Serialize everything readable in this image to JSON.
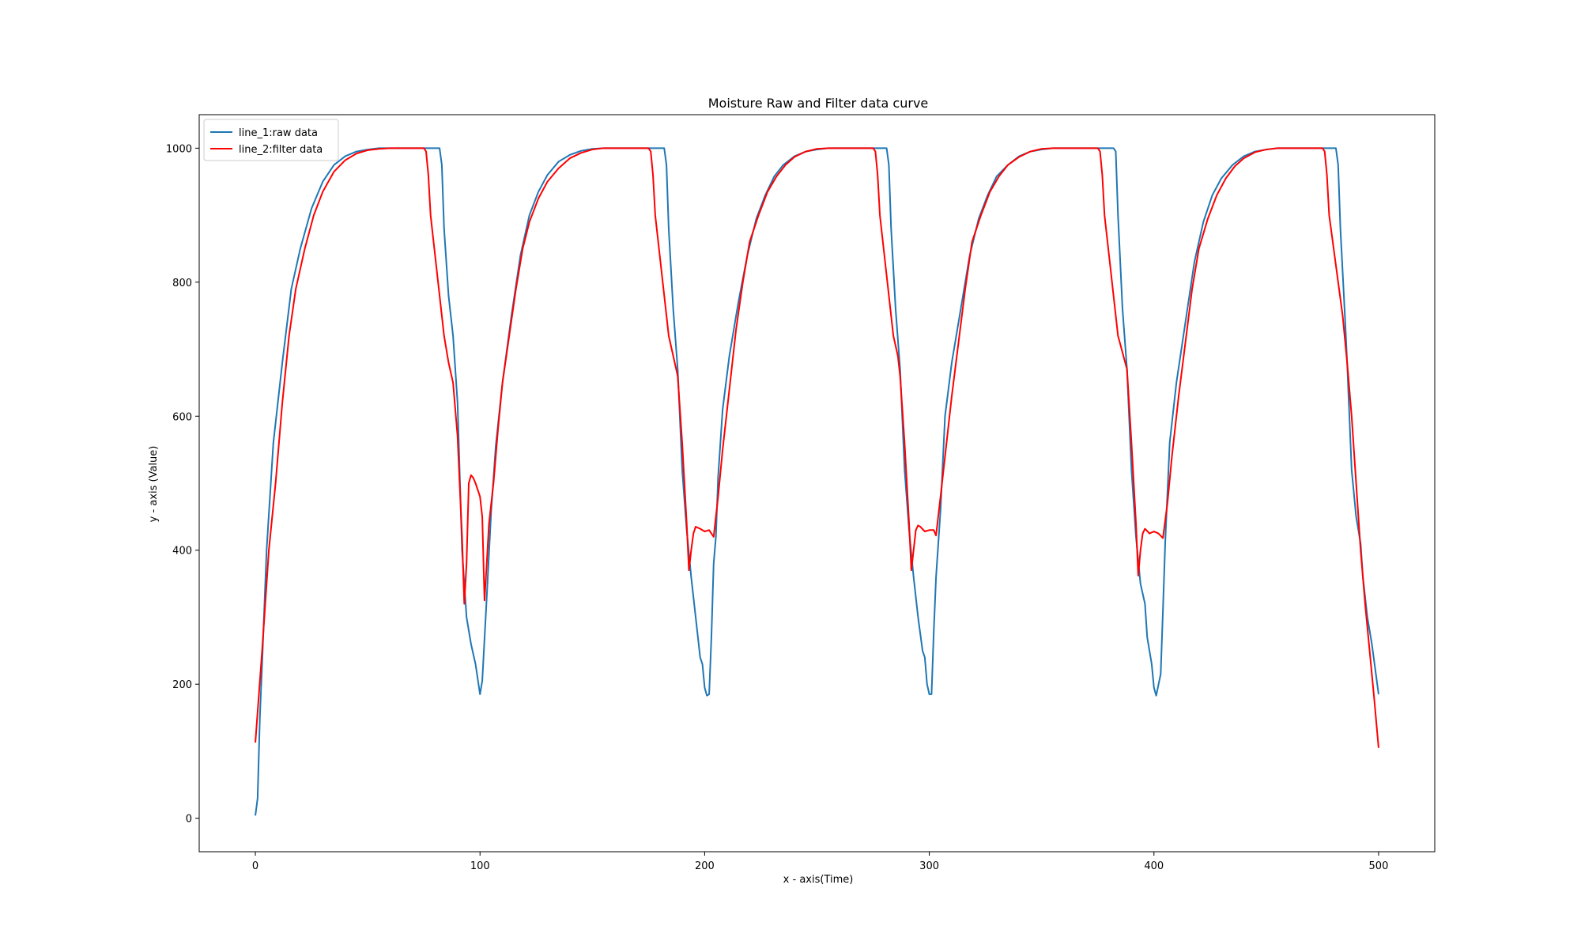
{
  "chart_data": {
    "type": "line",
    "title": "Moisture Raw and Filter data curve",
    "xlabel": "x - axis(Time)",
    "ylabel": "y - axis (Value)",
    "xlim": [
      -25,
      525
    ],
    "ylim": [
      -50,
      1050
    ],
    "xticks": [
      0,
      100,
      200,
      300,
      400,
      500
    ],
    "yticks": [
      0,
      200,
      400,
      600,
      800,
      1000
    ],
    "grid": false,
    "legend_position": "top-left",
    "series": [
      {
        "name": "line_1:raw data",
        "color": "#1f77b4",
        "points": [
          [
            0,
            4
          ],
          [
            1,
            30
          ],
          [
            2,
            150
          ],
          [
            3,
            230
          ],
          [
            5,
            400
          ],
          [
            8,
            560
          ],
          [
            12,
            680
          ],
          [
            16,
            790
          ],
          [
            20,
            850
          ],
          [
            25,
            910
          ],
          [
            30,
            950
          ],
          [
            35,
            975
          ],
          [
            40,
            988
          ],
          [
            45,
            995
          ],
          [
            50,
            998
          ],
          [
            55,
            1000
          ],
          [
            60,
            1000
          ],
          [
            70,
            1000
          ],
          [
            75,
            1000
          ],
          [
            78,
            1000
          ],
          [
            80,
            1000
          ],
          [
            82,
            1000
          ],
          [
            83,
            975
          ],
          [
            84,
            880
          ],
          [
            86,
            780
          ],
          [
            88,
            720
          ],
          [
            90,
            620
          ],
          [
            92,
            400
          ],
          [
            94,
            300
          ],
          [
            96,
            260
          ],
          [
            98,
            230
          ],
          [
            100,
            185
          ],
          [
            101,
            205
          ],
          [
            103,
            330
          ],
          [
            105,
            460
          ],
          [
            107,
            555
          ],
          [
            110,
            650
          ],
          [
            114,
            750
          ],
          [
            118,
            840
          ],
          [
            122,
            900
          ],
          [
            126,
            935
          ],
          [
            130,
            960
          ],
          [
            135,
            980
          ],
          [
            140,
            990
          ],
          [
            145,
            996
          ],
          [
            150,
            999
          ],
          [
            155,
            1000
          ],
          [
            170,
            1000
          ],
          [
            178,
            1000
          ],
          [
            182,
            1000
          ],
          [
            183,
            975
          ],
          [
            184,
            880
          ],
          [
            186,
            760
          ],
          [
            188,
            670
          ],
          [
            190,
            520
          ],
          [
            192,
            430
          ],
          [
            194,
            360
          ],
          [
            196,
            300
          ],
          [
            198,
            240
          ],
          [
            199,
            230
          ],
          [
            200,
            195
          ],
          [
            201,
            183
          ],
          [
            202,
            185
          ],
          [
            203,
            270
          ],
          [
            204,
            380
          ],
          [
            205,
            420
          ],
          [
            206,
            510
          ],
          [
            208,
            610
          ],
          [
            211,
            690
          ],
          [
            215,
            770
          ],
          [
            219,
            840
          ],
          [
            223,
            895
          ],
          [
            227,
            930
          ],
          [
            231,
            958
          ],
          [
            235,
            975
          ],
          [
            240,
            988
          ],
          [
            245,
            995
          ],
          [
            250,
            998
          ],
          [
            255,
            1000
          ],
          [
            270,
            1000
          ],
          [
            278,
            1000
          ],
          [
            281,
            1000
          ],
          [
            282,
            975
          ],
          [
            283,
            880
          ],
          [
            285,
            760
          ],
          [
            287,
            670
          ],
          [
            289,
            520
          ],
          [
            291,
            430
          ],
          [
            293,
            360
          ],
          [
            295,
            300
          ],
          [
            297,
            250
          ],
          [
            298,
            240
          ],
          [
            299,
            200
          ],
          [
            300,
            185
          ],
          [
            301,
            185
          ],
          [
            302,
            280
          ],
          [
            303,
            360
          ],
          [
            305,
            460
          ],
          [
            307,
            600
          ],
          [
            310,
            680
          ],
          [
            314,
            760
          ],
          [
            318,
            840
          ],
          [
            322,
            895
          ],
          [
            326,
            930
          ],
          [
            330,
            958
          ],
          [
            335,
            975
          ],
          [
            340,
            988
          ],
          [
            345,
            995
          ],
          [
            350,
            998
          ],
          [
            355,
            1000
          ],
          [
            370,
            1000
          ],
          [
            378,
            1000
          ],
          [
            382,
            1000
          ],
          [
            383,
            995
          ],
          [
            384,
            900
          ],
          [
            386,
            760
          ],
          [
            388,
            670
          ],
          [
            390,
            520
          ],
          [
            392,
            420
          ],
          [
            394,
            350
          ],
          [
            396,
            320
          ],
          [
            397,
            270
          ],
          [
            399,
            230
          ],
          [
            400,
            195
          ],
          [
            401,
            183
          ],
          [
            403,
            215
          ],
          [
            404,
            310
          ],
          [
            405,
            410
          ],
          [
            407,
            560
          ],
          [
            410,
            650
          ],
          [
            414,
            740
          ],
          [
            418,
            830
          ],
          [
            422,
            890
          ],
          [
            426,
            930
          ],
          [
            430,
            955
          ],
          [
            435,
            975
          ],
          [
            440,
            988
          ],
          [
            445,
            995
          ],
          [
            450,
            998
          ],
          [
            455,
            1000
          ],
          [
            470,
            1000
          ],
          [
            478,
            1000
          ],
          [
            481,
            1000
          ],
          [
            482,
            975
          ],
          [
            483,
            880
          ],
          [
            485,
            750
          ],
          [
            486,
            680
          ],
          [
            487,
            600
          ],
          [
            488,
            520
          ],
          [
            490,
            450
          ],
          [
            492,
            410
          ],
          [
            493,
            360
          ],
          [
            495,
            300
          ],
          [
            497,
            260
          ],
          [
            499,
            210
          ],
          [
            500,
            185
          ]
        ]
      },
      {
        "name": "line_2:filter data",
        "color": "#ff0000",
        "points": [
          [
            0,
            113
          ],
          [
            3,
            250
          ],
          [
            6,
            400
          ],
          [
            9,
            500
          ],
          [
            12,
            620
          ],
          [
            15,
            720
          ],
          [
            18,
            790
          ],
          [
            22,
            850
          ],
          [
            26,
            900
          ],
          [
            30,
            935
          ],
          [
            35,
            965
          ],
          [
            40,
            982
          ],
          [
            45,
            992
          ],
          [
            50,
            997
          ],
          [
            55,
            999
          ],
          [
            60,
            1000
          ],
          [
            70,
            1000
          ],
          [
            75,
            1000
          ],
          [
            76,
            995
          ],
          [
            77,
            960
          ],
          [
            78,
            900
          ],
          [
            80,
            840
          ],
          [
            82,
            780
          ],
          [
            84,
            720
          ],
          [
            86,
            680
          ],
          [
            88,
            650
          ],
          [
            90,
            570
          ],
          [
            92,
            420
          ],
          [
            93,
            320
          ],
          [
            94,
            380
          ],
          [
            95,
            500
          ],
          [
            96,
            512
          ],
          [
            97,
            508
          ],
          [
            98,
            500
          ],
          [
            100,
            480
          ],
          [
            101,
            450
          ],
          [
            102,
            325
          ],
          [
            103,
            380
          ],
          [
            104,
            440
          ],
          [
            106,
            500
          ],
          [
            108,
            580
          ],
          [
            110,
            650
          ],
          [
            113,
            720
          ],
          [
            116,
            790
          ],
          [
            119,
            850
          ],
          [
            122,
            890
          ],
          [
            126,
            925
          ],
          [
            130,
            950
          ],
          [
            135,
            970
          ],
          [
            140,
            985
          ],
          [
            145,
            993
          ],
          [
            150,
            998
          ],
          [
            155,
            1000
          ],
          [
            170,
            1000
          ],
          [
            175,
            1000
          ],
          [
            176,
            995
          ],
          [
            177,
            960
          ],
          [
            178,
            900
          ],
          [
            180,
            840
          ],
          [
            182,
            780
          ],
          [
            184,
            720
          ],
          [
            186,
            690
          ],
          [
            188,
            660
          ],
          [
            190,
            560
          ],
          [
            192,
            440
          ],
          [
            193,
            370
          ],
          [
            194,
            400
          ],
          [
            195,
            425
          ],
          [
            196,
            435
          ],
          [
            198,
            432
          ],
          [
            200,
            428
          ],
          [
            202,
            430
          ],
          [
            204,
            420
          ],
          [
            206,
            480
          ],
          [
            208,
            550
          ],
          [
            211,
            640
          ],
          [
            214,
            730
          ],
          [
            217,
            800
          ],
          [
            220,
            860
          ],
          [
            224,
            900
          ],
          [
            228,
            935
          ],
          [
            232,
            958
          ],
          [
            236,
            975
          ],
          [
            240,
            987
          ],
          [
            245,
            995
          ],
          [
            250,
            999
          ],
          [
            255,
            1000
          ],
          [
            270,
            1000
          ],
          [
            275,
            1000
          ],
          [
            276,
            995
          ],
          [
            277,
            960
          ],
          [
            278,
            900
          ],
          [
            280,
            840
          ],
          [
            282,
            780
          ],
          [
            284,
            720
          ],
          [
            286,
            690
          ],
          [
            287,
            660
          ],
          [
            289,
            560
          ],
          [
            291,
            440
          ],
          [
            292,
            370
          ],
          [
            293,
            400
          ],
          [
            294,
            430
          ],
          [
            295,
            437
          ],
          [
            296,
            435
          ],
          [
            298,
            428
          ],
          [
            300,
            430
          ],
          [
            302,
            430
          ],
          [
            303,
            422
          ],
          [
            305,
            480
          ],
          [
            307,
            540
          ],
          [
            310,
            630
          ],
          [
            313,
            710
          ],
          [
            316,
            790
          ],
          [
            319,
            860
          ],
          [
            323,
            900
          ],
          [
            327,
            935
          ],
          [
            331,
            958
          ],
          [
            335,
            975
          ],
          [
            340,
            987
          ],
          [
            345,
            995
          ],
          [
            350,
            999
          ],
          [
            355,
            1000
          ],
          [
            370,
            1000
          ],
          [
            375,
            1000
          ],
          [
            376,
            995
          ],
          [
            377,
            960
          ],
          [
            378,
            900
          ],
          [
            380,
            840
          ],
          [
            382,
            780
          ],
          [
            384,
            720
          ],
          [
            386,
            695
          ],
          [
            388,
            670
          ],
          [
            390,
            560
          ],
          [
            392,
            440
          ],
          [
            393,
            362
          ],
          [
            394,
            400
          ],
          [
            395,
            425
          ],
          [
            396,
            432
          ],
          [
            398,
            425
          ],
          [
            400,
            428
          ],
          [
            402,
            425
          ],
          [
            404,
            418
          ],
          [
            406,
            470
          ],
          [
            408,
            540
          ],
          [
            411,
            630
          ],
          [
            414,
            710
          ],
          [
            417,
            790
          ],
          [
            420,
            850
          ],
          [
            424,
            895
          ],
          [
            428,
            930
          ],
          [
            432,
            955
          ],
          [
            436,
            973
          ],
          [
            440,
            985
          ],
          [
            445,
            994
          ],
          [
            450,
            998
          ],
          [
            455,
            1000
          ],
          [
            470,
            1000
          ],
          [
            475,
            1000
          ],
          [
            476,
            995
          ],
          [
            477,
            960
          ],
          [
            478,
            900
          ],
          [
            480,
            850
          ],
          [
            482,
            800
          ],
          [
            484,
            750
          ],
          [
            486,
            680
          ],
          [
            488,
            600
          ],
          [
            490,
            500
          ],
          [
            492,
            400
          ],
          [
            494,
            320
          ],
          [
            496,
            250
          ],
          [
            498,
            180
          ],
          [
            500,
            105
          ]
        ]
      }
    ]
  }
}
